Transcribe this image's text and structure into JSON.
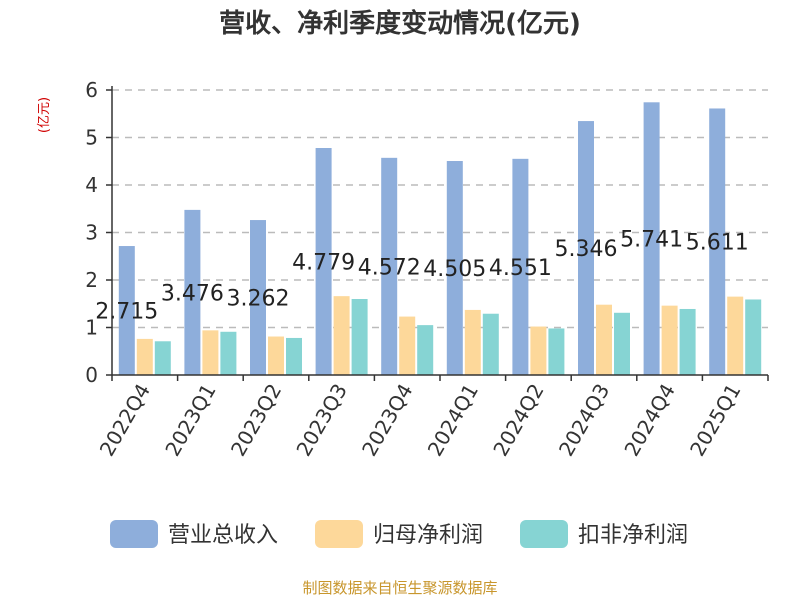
{
  "chart_data": {
    "type": "bar",
    "title": "营收、净利季度变动情况(亿元)",
    "unit_label": "(亿元)",
    "categories": [
      "2022Q4",
      "2023Q1",
      "2023Q2",
      "2023Q3",
      "2023Q4",
      "2024Q1",
      "2024Q2",
      "2024Q3",
      "2024Q4",
      "2025Q1"
    ],
    "series": [
      {
        "name": "营业总收入",
        "color": "#8eaedb",
        "values": [
          2.715,
          3.476,
          3.262,
          4.779,
          4.572,
          4.505,
          4.551,
          5.346,
          5.741,
          5.611
        ],
        "data_labels": [
          "2.715",
          "3.476",
          "3.262",
          "4.779",
          "4.572",
          "4.505",
          "4.551",
          "5.346",
          "5.741",
          "5.611"
        ]
      },
      {
        "name": "归母净利润",
        "color": "#fdd89a",
        "values": [
          0.76,
          0.94,
          0.81,
          1.66,
          1.23,
          1.37,
          1.02,
          1.48,
          1.46,
          1.65
        ]
      },
      {
        "name": "扣非净利润",
        "color": "#86d4d3",
        "values": [
          0.71,
          0.91,
          0.78,
          1.6,
          1.05,
          1.29,
          0.98,
          1.31,
          1.39,
          1.59
        ]
      }
    ],
    "ylim": [
      0,
      6
    ],
    "yticks": [
      "0",
      "1",
      "2",
      "3",
      "4",
      "5",
      "6"
    ],
    "grid": true,
    "legend_position": "bottom"
  },
  "source": "制图数据来自恒生聚源数据库"
}
